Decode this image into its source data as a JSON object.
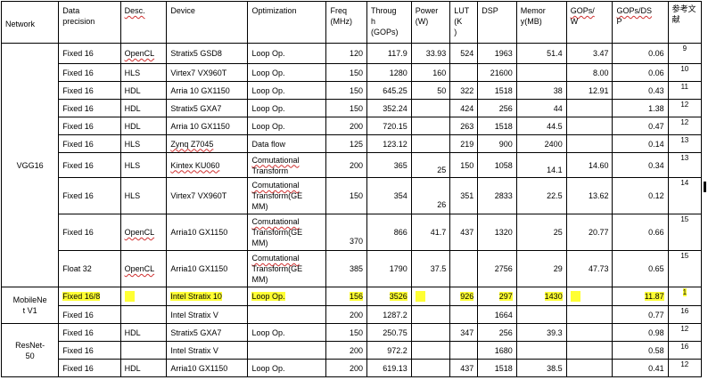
{
  "header": {
    "network": "Network",
    "precision": [
      "Data",
      "precision"
    ],
    "desc": "Desc.",
    "device": "Device",
    "optimization": "Optimization",
    "freq": [
      "Freq",
      "(MHz)"
    ],
    "throughput": [
      "Throug",
      "h",
      "(GOPs)"
    ],
    "power": [
      "Power",
      "(W)"
    ],
    "lut": [
      "LUT",
      "(K",
      ")"
    ],
    "dsp": "DSP",
    "memory": [
      "Memor",
      "y(MB)"
    ],
    "gops_w": [
      "GOPs/",
      "W"
    ],
    "gops_dsp": [
      "GOPs/DS",
      "P"
    ],
    "ref": [
      "参考文",
      "献"
    ]
  },
  "networks": {
    "vgg16": "VGG16",
    "mobilenet": [
      "MobileNe",
      "t V1"
    ],
    "resnet": [
      "ResNet-",
      "50"
    ]
  },
  "rows": [
    {
      "precision": "Fixed 16",
      "desc": "OpenCL",
      "device": "Stratix5 GSD8",
      "opt": [
        "Loop  Op."
      ],
      "freq": "120",
      "throughput": "117.9",
      "power": "33.93",
      "lut": "524",
      "dsp": "1963",
      "memory": "51.4",
      "gops_w": "3.47",
      "gops_dsp": "0.06",
      "ref": "9"
    },
    {
      "precision": "Fixed 16",
      "desc": "HLS",
      "device": "Virtex7 VX960T",
      "opt": [
        "Loop  Op."
      ],
      "freq": "150",
      "throughput": "1280",
      "power": "160",
      "lut": "",
      "dsp": "21600",
      "memory": "",
      "gops_w": "8.00",
      "gops_dsp": "0.06",
      "ref": "10"
    },
    {
      "precision": "Fixed 16",
      "desc": "HDL",
      "device": "Arria 10 GX1150",
      "opt": [
        "Loop  Op."
      ],
      "freq": "150",
      "throughput": "645.25",
      "power": "50",
      "lut": "322",
      "dsp": "1518",
      "memory": "38",
      "gops_w": "12.91",
      "gops_dsp": "0.43",
      "ref": "11"
    },
    {
      "precision": "Fixed 16",
      "desc": "HDL",
      "device": "Stratix5 GXA7",
      "opt": [
        "Loop  Op."
      ],
      "freq": "150",
      "throughput": "352.24",
      "power": "",
      "lut": "424",
      "dsp": "256",
      "memory": "44",
      "gops_w": "",
      "gops_dsp": "1.38",
      "ref": "12"
    },
    {
      "precision": "Fixed 16",
      "desc": "HDL",
      "device": "Arria 10 GX1150",
      "opt": [
        "Loop  Op."
      ],
      "freq": "200",
      "throughput": "720.15",
      "power": "",
      "lut": "263",
      "dsp": "1518",
      "memory": "44.5",
      "gops_w": "",
      "gops_dsp": "0.47",
      "ref": "12"
    },
    {
      "precision": "Fixed 16",
      "desc": "HLS",
      "device": "Zynq Z7045",
      "opt": [
        "Data flow"
      ],
      "freq": "125",
      "throughput": "123.12",
      "power": "",
      "lut": "219",
      "dsp": "900",
      "memory": "2400",
      "gops_w": "",
      "gops_dsp": "0.14",
      "ref": "13"
    },
    {
      "precision": "Fixed 16",
      "desc": "HLS",
      "device": "Kintex KU060",
      "opt": [
        "Comutational",
        "Transform"
      ],
      "freq": "200",
      "throughput": "365",
      "power": "25",
      "lut": "150",
      "dsp": "1058",
      "memory": "14.1",
      "gops_w": "14.60",
      "gops_dsp": "0.34",
      "ref": "13"
    },
    {
      "precision": "Fixed 16",
      "desc": "HLS",
      "device": "Virtex7 VX960T",
      "opt": [
        "Comutational",
        "Transform(GE",
        "MM)"
      ],
      "freq": "150",
      "throughput": "354",
      "power": "26",
      "lut": "351",
      "dsp": "2833",
      "memory": "22.5",
      "gops_w": "13.62",
      "gops_dsp": "0.12",
      "ref": "14"
    },
    {
      "precision": "Fixed 16",
      "desc": "OpenCL",
      "device": "Arria10 GX1150",
      "opt": [
        "Comutational",
        "Transform(GE",
        "MM)"
      ],
      "freq": "370",
      "throughput": "866",
      "power": "41.7",
      "lut": "437",
      "dsp": "1320",
      "memory": "25",
      "gops_w": "20.77",
      "gops_dsp": "0.66",
      "ref": "15"
    },
    {
      "precision": "Float 32",
      "desc": "OpenCL",
      "device": "Arria10 GX1150",
      "opt": [
        "Comutational",
        "Transform(GE",
        "MM)"
      ],
      "freq": "385",
      "throughput": "1790",
      "power": "37.5",
      "lut": "",
      "dsp": "2756",
      "memory": "29",
      "gops_w": "47.73",
      "gops_dsp": "0.65",
      "ref": "15"
    },
    {
      "precision": "Fixed 16/8",
      "desc": "",
      "device": "Intel Stratix 10",
      "opt": [
        "Loop  Op."
      ],
      "freq": "156",
      "throughput": "3526",
      "power": "",
      "lut": "926",
      "dsp": "297",
      "memory": "1430",
      "gops_w": "",
      "gops_dsp": "11.87",
      "ref": "1"
    },
    {
      "precision": "Fixed 16",
      "desc": "",
      "device": "Intel Stratix V",
      "opt": [
        ""
      ],
      "freq": "200",
      "throughput": "1287.2",
      "power": "",
      "lut": "",
      "dsp": "1664",
      "memory": "",
      "gops_w": "",
      "gops_dsp": "0.77",
      "ref": "16"
    },
    {
      "precision": "Fixed 16",
      "desc": "HDL",
      "device": "Stratix5 GXA7",
      "opt": [
        "Loop  Op."
      ],
      "freq": "150",
      "throughput": "250.75",
      "power": "",
      "lut": "347",
      "dsp": "256",
      "memory": "39.3",
      "gops_w": "",
      "gops_dsp": "0.98",
      "ref": "12"
    },
    {
      "precision": "Fixed 16",
      "desc": "",
      "device": "Intel Stratix V",
      "opt": [
        ""
      ],
      "freq": "200",
      "throughput": "972.2",
      "power": "",
      "lut": "",
      "dsp": "1680",
      "memory": "",
      "gops_w": "",
      "gops_dsp": "0.58",
      "ref": "16"
    },
    {
      "precision": "Fixed 16",
      "desc": "HDL",
      "device": "Arria10 GX1150",
      "opt": [
        "Loop  Op."
      ],
      "freq": "200",
      "throughput": "619.13",
      "power": "",
      "lut": "437",
      "dsp": "1518",
      "memory": "38.5",
      "gops_w": "",
      "gops_dsp": "0.41",
      "ref": "12"
    }
  ],
  "colors": {
    "highlight": "#ffff33",
    "spellcheck": "#d03030",
    "border": "#000000"
  }
}
